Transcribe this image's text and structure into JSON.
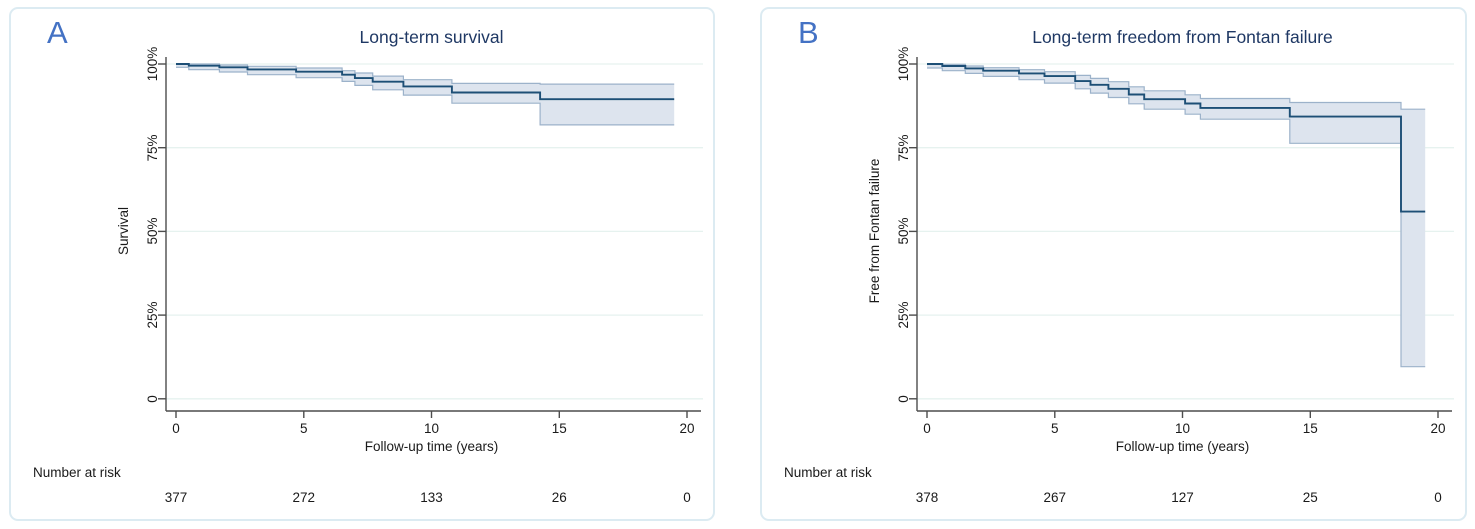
{
  "figure": {
    "background": "#ffffff",
    "panel_border_color": "#dcebf2",
    "panel_letter_color": "#4472c4",
    "title_color": "#1f3864",
    "axis_color": "#4d4d4d",
    "grid_color": "#e6f2ef",
    "km_line_color": "#1d4f76",
    "ci_fill_color": "#dde4ee",
    "ci_edge_color": "#9cb2ca",
    "text_color": "#1a1a1a"
  },
  "chart_data": [
    {
      "type": "line",
      "panel_label": "A",
      "title": "Long-term survival",
      "xlabel": "Follow-up time (years)",
      "ylabel": "Survival",
      "x_ticks": [
        {
          "value": 0,
          "label": "0"
        },
        {
          "value": 5,
          "label": "5"
        },
        {
          "value": 10,
          "label": "10"
        },
        {
          "value": 15,
          "label": "15"
        },
        {
          "value": 20,
          "label": "20"
        }
      ],
      "y_ticks": [
        {
          "value": 100,
          "label": "100%"
        },
        {
          "value": 75,
          "label": "75%"
        },
        {
          "value": 50,
          "label": "50%"
        },
        {
          "value": 25,
          "label": "25%"
        },
        {
          "value": 0,
          "label": "0"
        }
      ],
      "xlim": [
        0,
        20.5
      ],
      "ylim": [
        0,
        100
      ],
      "grid": true,
      "legend": "none",
      "steps_format": "time_years, estimate_pct, ci_lower_pct, ci_upper_pct",
      "series": [
        {
          "name": "Kaplan-Meier survival estimate with 95% CI",
          "end_time": 19.5,
          "steps": [
            [
              0,
              100,
              99.0,
              100
            ],
            [
              0.5,
              99.5,
              98.3,
              100
            ],
            [
              1.7,
              99.0,
              97.6,
              99.7
            ],
            [
              2.8,
              98.4,
              96.8,
              99.3
            ],
            [
              4.7,
              97.7,
              95.9,
              98.8
            ],
            [
              6.5,
              96.8,
              94.8,
              98.0
            ],
            [
              7.0,
              95.8,
              93.6,
              97.3
            ],
            [
              7.7,
              94.7,
              92.3,
              96.4
            ],
            [
              8.9,
              93.3,
              90.7,
              95.3
            ],
            [
              10.8,
              91.5,
              88.3,
              94.2
            ],
            [
              14.25,
              89.5,
              81.8,
              94.0
            ]
          ]
        }
      ],
      "number_at_risk": {
        "label": "Number at risk",
        "times": [
          0,
          5,
          10,
          15,
          20
        ],
        "counts": [
          "377",
          "272",
          "133",
          "26",
          "0"
        ]
      }
    },
    {
      "type": "line",
      "panel_label": "B",
      "title": "Long-term freedom from Fontan failure",
      "xlabel": "Follow-up time (years)",
      "ylabel": "Free from Fontan failure",
      "x_ticks": [
        {
          "value": 0,
          "label": "0"
        },
        {
          "value": 5,
          "label": "5"
        },
        {
          "value": 10,
          "label": "10"
        },
        {
          "value": 15,
          "label": "15"
        },
        {
          "value": 20,
          "label": "20"
        }
      ],
      "y_ticks": [
        {
          "value": 100,
          "label": "100%"
        },
        {
          "value": 75,
          "label": "75%"
        },
        {
          "value": 50,
          "label": "50%"
        },
        {
          "value": 25,
          "label": "25%"
        },
        {
          "value": 0,
          "label": "0"
        }
      ],
      "xlim": [
        0,
        20.5
      ],
      "ylim": [
        0,
        100
      ],
      "grid": true,
      "legend": "none",
      "steps_format": "time_years, estimate_pct, ci_lower_pct, ci_upper_pct",
      "series": [
        {
          "name": "Kaplan-Meier freedom from Fontan failure estimate with 95% CI",
          "end_time": 19.5,
          "steps": [
            [
              0,
              100,
              98.8,
              100
            ],
            [
              0.6,
              99.4,
              98.0,
              99.9
            ],
            [
              1.5,
              98.7,
              97.2,
              99.4
            ],
            [
              2.2,
              98.0,
              96.3,
              98.9
            ],
            [
              3.6,
              97.2,
              95.3,
              98.3
            ],
            [
              4.6,
              96.4,
              94.3,
              97.7
            ],
            [
              5.8,
              94.9,
              92.6,
              96.6
            ],
            [
              6.4,
              93.8,
              91.3,
              95.7
            ],
            [
              7.1,
              92.6,
              90.0,
              94.7
            ],
            [
              7.9,
              90.9,
              88.1,
              93.2
            ],
            [
              8.5,
              89.5,
              86.5,
              92.0
            ],
            [
              10.1,
              88.2,
              85.0,
              90.8
            ],
            [
              10.7,
              86.9,
              83.5,
              89.7
            ],
            [
              14.2,
              84.3,
              76.3,
              88.5
            ],
            [
              18.55,
              55.9,
              9.6,
              86.5
            ]
          ]
        }
      ],
      "number_at_risk": {
        "label": "Number at risk",
        "times": [
          0,
          5,
          10,
          15,
          20
        ],
        "counts": [
          "378",
          "267",
          "127",
          "25",
          "0"
        ]
      }
    }
  ]
}
